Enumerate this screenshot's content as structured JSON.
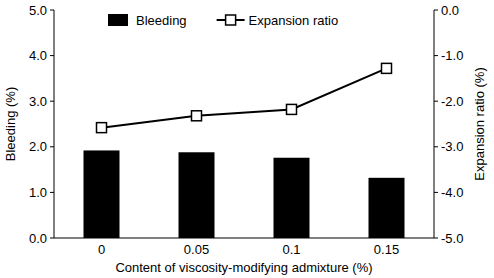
{
  "chart_data": {
    "type": "bar",
    "x_label": "Content of viscosity-modifying admixture (%)",
    "y_label": "Bleeding (%)",
    "y2_label": "Expansion ratio (%)",
    "categories": [
      "0",
      "0.05",
      "0.1",
      "0.15"
    ],
    "series": [
      {
        "name": "Bleeding",
        "type": "bar",
        "color": "#000000",
        "values": [
          1.92,
          1.88,
          1.76,
          1.32
        ]
      },
      {
        "name": "Expansion ratio",
        "type": "line",
        "axis": "y2",
        "color": "#000000",
        "marker": "square",
        "line_style": "solid",
        "values": [
          -2.58,
          -2.32,
          -2.18,
          -1.28
        ]
      }
    ],
    "ylim": [
      0,
      5
    ],
    "yticks": [
      {
        "value": 0,
        "label": "0.0"
      },
      {
        "value": 1,
        "label": "1.0"
      },
      {
        "value": 2,
        "label": "2.0"
      },
      {
        "value": 3,
        "label": "3.0"
      },
      {
        "value": 4,
        "label": "4.0"
      },
      {
        "value": 5,
        "label": "5.0"
      }
    ],
    "y2lim": [
      -5,
      0
    ],
    "y2ticks": [
      {
        "value": -5,
        "label": "-5.0"
      },
      {
        "value": -4,
        "label": "-4.0"
      },
      {
        "value": -3,
        "label": "-3.0"
      },
      {
        "value": -2,
        "label": "-2.0"
      },
      {
        "value": -1,
        "label": "-1.0"
      },
      {
        "value": 0,
        "label": "0.0"
      }
    ],
    "grid": false,
    "legend": "top"
  }
}
